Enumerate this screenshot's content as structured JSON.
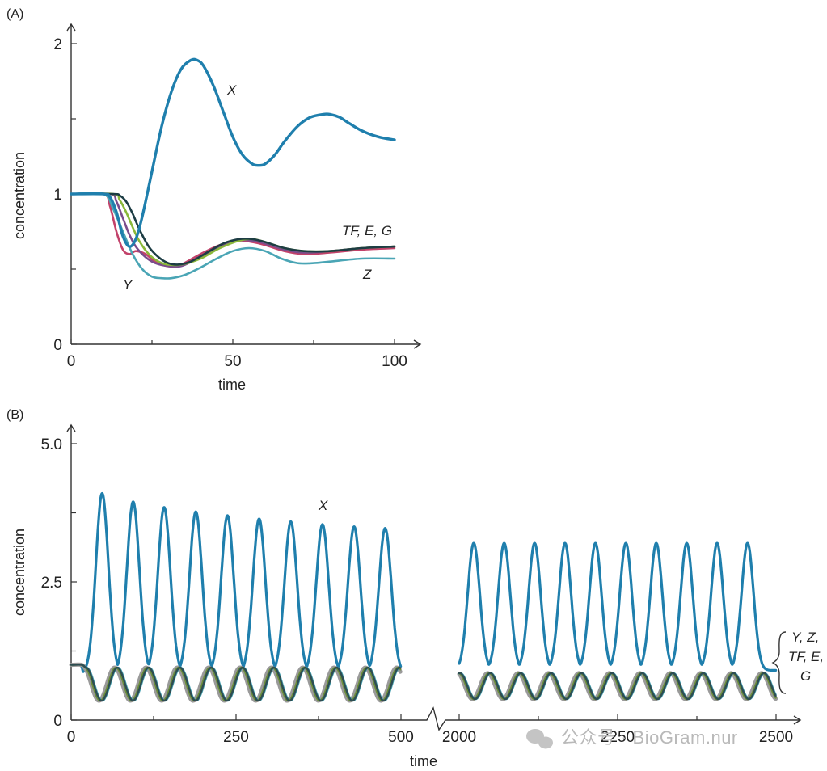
{
  "figure": {
    "watermark": "公众号 · BioGram.nur"
  },
  "chart_data": [
    {
      "panel_label": "(A)",
      "type": "line",
      "xlabel": "time",
      "ylabel": "concentration",
      "xlim": [
        0,
        100
      ],
      "ylim": [
        0,
        2
      ],
      "xticks": [
        0,
        50,
        100
      ],
      "xtick_labels": [
        "0",
        "50",
        "100"
      ],
      "yticks": [
        0,
        1,
        2
      ],
      "ytick_labels": [
        "0",
        "1",
        "2"
      ],
      "grid": false,
      "legend": "none",
      "annotations": [
        {
          "text": "X",
          "x": 50,
          "y": 1.69
        },
        {
          "text": "TF, E, G",
          "x": 85,
          "y": 0.75
        },
        {
          "text": "Z",
          "x": 92,
          "y": 0.47
        },
        {
          "text": "Y",
          "x": 17,
          "y": 0.37
        }
      ],
      "series": [
        {
          "color": "#1f7fad",
          "x": [
            0,
            10,
            12,
            14,
            16,
            18,
            20,
            22,
            25,
            28,
            31,
            34,
            37,
            39,
            41,
            44,
            47,
            50,
            53,
            56,
            58,
            60,
            63,
            66,
            70,
            74,
            78,
            80,
            83,
            86,
            90,
            95,
            100
          ],
          "y": [
            1.0,
            1.0,
            0.98,
            0.88,
            0.72,
            0.65,
            0.7,
            0.85,
            1.15,
            1.45,
            1.68,
            1.83,
            1.89,
            1.89,
            1.85,
            1.72,
            1.55,
            1.38,
            1.26,
            1.2,
            1.19,
            1.2,
            1.26,
            1.35,
            1.45,
            1.51,
            1.53,
            1.53,
            1.51,
            1.47,
            1.42,
            1.38,
            1.36
          ]
        },
        {
          "color": "#c2426a",
          "x": [
            0,
            10,
            12,
            14,
            16,
            18,
            20,
            23,
            26,
            30,
            34,
            40,
            46,
            52,
            56,
            60,
            66,
            72,
            80,
            90,
            100
          ],
          "y": [
            1.0,
            1.0,
            0.92,
            0.75,
            0.63,
            0.6,
            0.62,
            0.6,
            0.55,
            0.52,
            0.53,
            0.6,
            0.66,
            0.69,
            0.68,
            0.66,
            0.62,
            0.6,
            0.61,
            0.63,
            0.64
          ]
        },
        {
          "color": "#4aa5b5",
          "x": [
            0,
            10,
            13,
            16,
            19,
            22,
            25,
            28,
            31,
            35,
            40,
            45,
            50,
            55,
            60,
            65,
            70,
            75,
            80,
            90,
            100
          ],
          "y": [
            1.0,
            1.0,
            0.9,
            0.75,
            0.6,
            0.5,
            0.45,
            0.44,
            0.44,
            0.46,
            0.51,
            0.57,
            0.62,
            0.64,
            0.62,
            0.57,
            0.54,
            0.54,
            0.55,
            0.57,
            0.57
          ]
        },
        {
          "color": "#7a4c8c",
          "x": [
            0,
            12,
            14,
            16,
            18,
            20,
            23,
            26,
            30,
            34,
            40,
            46,
            52,
            56,
            60,
            66,
            72,
            80,
            90,
            100
          ],
          "y": [
            1.0,
            1.0,
            0.95,
            0.84,
            0.73,
            0.65,
            0.58,
            0.54,
            0.52,
            0.52,
            0.58,
            0.65,
            0.69,
            0.69,
            0.67,
            0.63,
            0.61,
            0.62,
            0.64,
            0.65
          ]
        },
        {
          "color": "#8ab83a",
          "x": [
            0,
            13,
            15,
            17,
            19,
            21,
            24,
            27,
            30,
            34,
            40,
            46,
            52,
            56,
            60,
            66,
            72,
            80,
            90,
            100
          ],
          "y": [
            1.0,
            1.0,
            0.96,
            0.88,
            0.78,
            0.69,
            0.6,
            0.55,
            0.53,
            0.53,
            0.57,
            0.64,
            0.69,
            0.7,
            0.68,
            0.64,
            0.62,
            0.62,
            0.64,
            0.65
          ]
        },
        {
          "color": "#1d3d44",
          "x": [
            0,
            13,
            15,
            17,
            19,
            21,
            24,
            27,
            30,
            33,
            37,
            42,
            47,
            52,
            56,
            60,
            66,
            72,
            80,
            90,
            100
          ],
          "y": [
            1.0,
            1.0,
            0.99,
            0.95,
            0.87,
            0.77,
            0.65,
            0.58,
            0.54,
            0.53,
            0.55,
            0.61,
            0.67,
            0.7,
            0.7,
            0.68,
            0.64,
            0.62,
            0.62,
            0.64,
            0.65
          ]
        }
      ]
    },
    {
      "panel_label": "(B)",
      "type": "line",
      "xlabel": "time",
      "ylabel": "concentration",
      "axis_break": [
        500,
        2000
      ],
      "xlim": [
        [
          0,
          500
        ],
        [
          2000,
          2500
        ]
      ],
      "ylim": [
        0,
        5
      ],
      "xticks": [
        0,
        250,
        500,
        2000,
        2250,
        2500
      ],
      "xtick_labels": [
        "0",
        "250",
        "500",
        "2000",
        "2250",
        "2500"
      ],
      "yticks": [
        0,
        2.5,
        5
      ],
      "ytick_labels": [
        "0",
        "2.5",
        "5.0"
      ],
      "grid": false,
      "legend": "none",
      "annotations": [
        {
          "text": "X",
          "x": 395,
          "y": 3.75
        },
        {
          "text": "Y, Z,",
          "x": 2510,
          "y": 1.05
        },
        {
          "text": "TF, E,",
          "x": 2510,
          "y": 0.68
        },
        {
          "text": "G",
          "x": 2510,
          "y": 0.32
        }
      ],
      "series": [
        {
          "color": "#1f7fad",
          "segment": "0-500",
          "peaks_x": [
            47,
            94,
            141,
            189,
            237,
            285,
            333,
            381,
            429,
            476
          ],
          "peaks_y": [
            4.1,
            3.95,
            3.85,
            3.77,
            3.7,
            3.64,
            3.59,
            3.54,
            3.5,
            3.47
          ],
          "trough_y": 0.85
        },
        {
          "color": "#1f7fad",
          "segment": "2000-2500",
          "peaks_x": [
            2023,
            2071,
            2119,
            2167,
            2215,
            2263,
            2311,
            2359,
            2407,
            2455
          ],
          "peaks_y": [
            3.2,
            3.2,
            3.2,
            3.2,
            3.2,
            3.2,
            3.2,
            3.2,
            3.2,
            3.2
          ],
          "trough_y": 0.9
        },
        {
          "color": "#4d4d4d",
          "name_group": "Y, Z, TF, E, G",
          "segment": "0-500",
          "range_y": [
            0.35,
            1.0
          ]
        },
        {
          "color": "#4d4d4d",
          "name_group": "Y, Z, TF, E, G",
          "segment": "2000-2500",
          "range_y": [
            0.38,
            0.85
          ]
        }
      ]
    }
  ]
}
